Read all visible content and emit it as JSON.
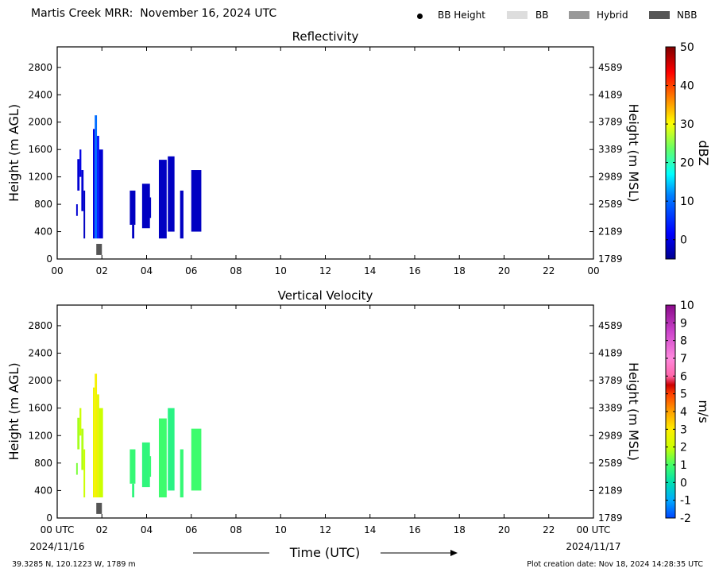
{
  "title": "Martis Creek MRR:  November 16, 2024 UTC",
  "legend": [
    {
      "label": "BB Height",
      "symbol": "dot",
      "color": "#000000"
    },
    {
      "label": "BB",
      "symbol": "bar",
      "color": "#dddddd"
    },
    {
      "label": "Hybrid",
      "symbol": "bar",
      "color": "#999999"
    },
    {
      "label": "NBB",
      "symbol": "bar",
      "color": "#555555"
    }
  ],
  "footer": {
    "location": "39.3285 N, 120.1223 W, 1789 m",
    "creation": "Plot creation date: Nov 18, 2024 14:28:35 UTC",
    "xlabel": "Time (UTC)",
    "date_start": "2024/11/16",
    "date_end": "2024/11/17"
  },
  "chart_data": [
    {
      "type": "heatmap",
      "title": "Reflectivity",
      "xlabel": "",
      "ylabel": "Height (m AGL)",
      "y2label": "Height (m MSL)",
      "xlim": [
        0,
        24
      ],
      "ylim": [
        0,
        3100
      ],
      "xticks": [
        "00",
        "02",
        "04",
        "06",
        "08",
        "10",
        "12",
        "14",
        "16",
        "18",
        "20",
        "22",
        "00"
      ],
      "yticks": [
        0,
        400,
        800,
        1200,
        1600,
        2000,
        2400,
        2800
      ],
      "y2ticks": [
        1789,
        2189,
        2589,
        2989,
        3389,
        3789,
        4189,
        4589
      ],
      "colorbar": {
        "label": "dBZ",
        "ticks": [
          0,
          10,
          20,
          30,
          40,
          50
        ],
        "range": [
          -5,
          50
        ]
      },
      "cells": [
        {
          "t0": 0.85,
          "t1": 0.92,
          "h0": 630,
          "h1": 800,
          "v": -1
        },
        {
          "t0": 0.9,
          "t1": 1.0,
          "h0": 1000,
          "h1": 1460,
          "v": -1
        },
        {
          "t0": 1.0,
          "t1": 1.08,
          "h0": 1200,
          "h1": 1600,
          "v": 0
        },
        {
          "t0": 1.08,
          "t1": 1.18,
          "h0": 700,
          "h1": 1300,
          "v": -1
        },
        {
          "t0": 1.18,
          "t1": 1.25,
          "h0": 300,
          "h1": 1000,
          "v": -2
        },
        {
          "t0": 1.6,
          "t1": 1.68,
          "h0": 300,
          "h1": 1900,
          "v": 0
        },
        {
          "t0": 1.68,
          "t1": 1.78,
          "h0": 300,
          "h1": 2100,
          "v": 10
        },
        {
          "t0": 1.78,
          "t1": 1.88,
          "h0": 300,
          "h1": 1800,
          "v": 3
        },
        {
          "t0": 1.88,
          "t1": 2.05,
          "h0": 300,
          "h1": 1600,
          "v": -1
        },
        {
          "t0": 3.25,
          "t1": 3.5,
          "h0": 500,
          "h1": 1000,
          "v": -2
        },
        {
          "t0": 3.35,
          "t1": 3.45,
          "h0": 300,
          "h1": 500,
          "v": -2
        },
        {
          "t0": 3.8,
          "t1": 4.15,
          "h0": 450,
          "h1": 1100,
          "v": -2
        },
        {
          "t0": 4.1,
          "t1": 4.2,
          "h0": 600,
          "h1": 900,
          "v": -2
        },
        {
          "t0": 4.55,
          "t1": 4.9,
          "h0": 300,
          "h1": 1450,
          "v": -2
        },
        {
          "t0": 4.95,
          "t1": 5.25,
          "h0": 400,
          "h1": 1500,
          "v": -2
        },
        {
          "t0": 5.5,
          "t1": 5.65,
          "h0": 300,
          "h1": 1000,
          "v": -2
        },
        {
          "t0": 6.0,
          "t1": 6.45,
          "h0": 400,
          "h1": 1300,
          "v": -2
        }
      ],
      "bb": [
        {
          "t0": 1.75,
          "t1": 2.0,
          "h": 140,
          "kind": "NBB"
        }
      ]
    },
    {
      "type": "heatmap",
      "title": "Vertical Velocity",
      "xlabel": "Time (UTC)",
      "ylabel": "Height (m AGL)",
      "y2label": "Height (m MSL)",
      "xlim": [
        0,
        24
      ],
      "ylim": [
        0,
        3100
      ],
      "xticks": [
        "00 UTC",
        "02",
        "04",
        "06",
        "08",
        "10",
        "12",
        "14",
        "16",
        "18",
        "20",
        "22",
        "00 UTC"
      ],
      "yticks": [
        0,
        400,
        800,
        1200,
        1600,
        2000,
        2400,
        2800
      ],
      "y2ticks": [
        1789,
        2189,
        2589,
        2989,
        3389,
        3789,
        4189,
        4589
      ],
      "colorbar": {
        "label": "m/s",
        "ticks": [
          -2,
          -1,
          0,
          1,
          2,
          3,
          4,
          5,
          6,
          7,
          8,
          9,
          10
        ],
        "range": [
          -2,
          10
        ]
      },
      "cells": [
        {
          "t0": 0.85,
          "t1": 0.92,
          "h0": 630,
          "h1": 800,
          "v": 1.4
        },
        {
          "t0": 0.9,
          "t1": 1.0,
          "h0": 1000,
          "h1": 1460,
          "v": 1.7
        },
        {
          "t0": 1.0,
          "t1": 1.08,
          "h0": 1200,
          "h1": 1600,
          "v": 2.0
        },
        {
          "t0": 1.08,
          "t1": 1.18,
          "h0": 700,
          "h1": 1300,
          "v": 1.8
        },
        {
          "t0": 1.18,
          "t1": 1.25,
          "h0": 300,
          "h1": 1000,
          "v": 2.0
        },
        {
          "t0": 1.6,
          "t1": 1.68,
          "h0": 300,
          "h1": 1900,
          "v": 2.6
        },
        {
          "t0": 1.68,
          "t1": 1.78,
          "h0": 300,
          "h1": 2100,
          "v": 2.8
        },
        {
          "t0": 1.78,
          "t1": 1.88,
          "h0": 300,
          "h1": 1800,
          "v": 2.4
        },
        {
          "t0": 1.88,
          "t1": 2.05,
          "h0": 300,
          "h1": 1600,
          "v": 2.0
        },
        {
          "t0": 3.25,
          "t1": 3.5,
          "h0": 500,
          "h1": 1000,
          "v": 0.8
        },
        {
          "t0": 3.35,
          "t1": 3.45,
          "h0": 300,
          "h1": 500,
          "v": 0.7
        },
        {
          "t0": 3.8,
          "t1": 4.15,
          "h0": 450,
          "h1": 1100,
          "v": 0.7
        },
        {
          "t0": 4.1,
          "t1": 4.2,
          "h0": 600,
          "h1": 900,
          "v": 0.8
        },
        {
          "t0": 4.55,
          "t1": 4.9,
          "h0": 300,
          "h1": 1450,
          "v": 0.9
        },
        {
          "t0": 4.95,
          "t1": 5.25,
          "h0": 400,
          "h1": 1600,
          "v": 0.6
        },
        {
          "t0": 5.5,
          "t1": 5.65,
          "h0": 300,
          "h1": 1000,
          "v": 0.8
        },
        {
          "t0": 6.0,
          "t1": 6.45,
          "h0": 400,
          "h1": 1300,
          "v": 0.9
        }
      ],
      "bb": [
        {
          "t0": 1.75,
          "t1": 2.0,
          "h": 140,
          "kind": "NBB"
        }
      ]
    }
  ]
}
